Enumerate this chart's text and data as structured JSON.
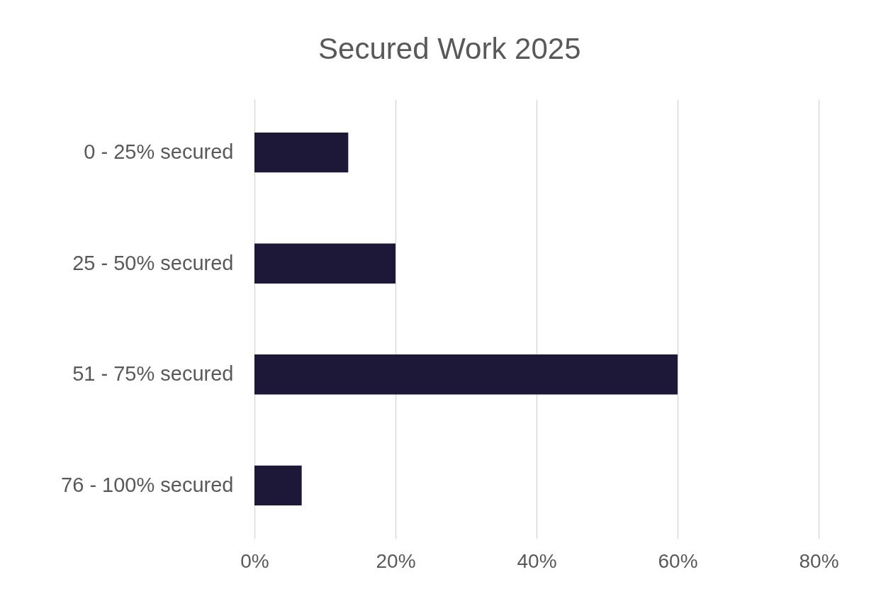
{
  "chart_data": {
    "type": "bar",
    "orientation": "horizontal",
    "title": "Secured Work 2025",
    "categories": [
      "0 - 25% secured",
      "25 - 50% secured",
      "51 - 75% secured",
      "76 - 100% secured"
    ],
    "values": [
      13.3,
      20,
      60,
      6.7
    ],
    "color": "#1e1838",
    "xlim": [
      0,
      80
    ],
    "xticks": [
      {
        "value": 0,
        "label": "0%"
      },
      {
        "value": 20,
        "label": "20%"
      },
      {
        "value": 40,
        "label": "40%"
      },
      {
        "value": 60,
        "label": "60%"
      },
      {
        "value": 80,
        "label": "80%"
      }
    ],
    "grid": "x"
  }
}
